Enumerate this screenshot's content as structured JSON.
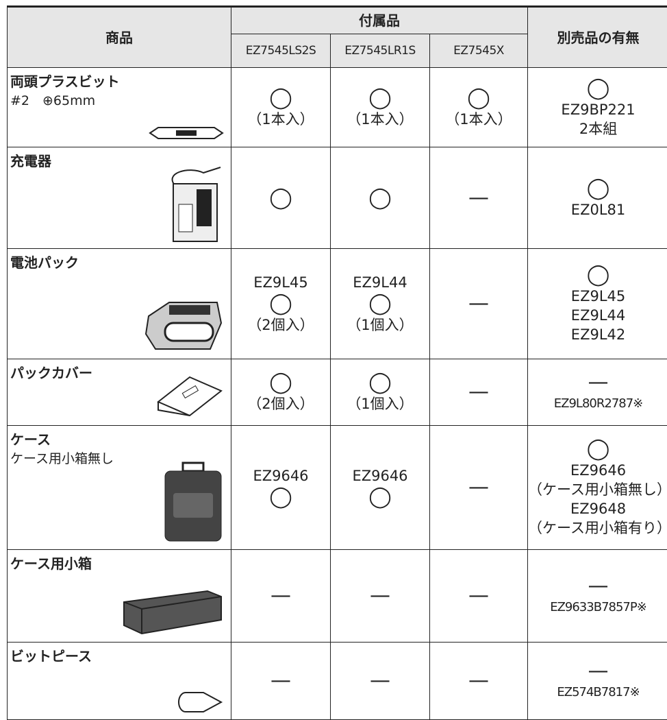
{
  "header": {
    "product": "商品",
    "accessories": "付属品",
    "models": [
      "EZ7545LS2S",
      "EZ7545LR1S",
      "EZ7545X"
    ],
    "separate": "別売品の有無"
  },
  "rows": [
    {
      "name": "両頭プラスビット",
      "sub": "#2　⊕65mm",
      "cells": [
        [
          "◯",
          "（1本入）"
        ],
        [
          "◯",
          "（1本入）"
        ],
        [
          "◯",
          "（1本入）"
        ]
      ],
      "separate": [
        "◯",
        "EZ9BP221",
        "2本組"
      ]
    },
    {
      "name": "充電器",
      "cells": [
        [
          "◯"
        ],
        [
          "◯"
        ],
        [
          "—"
        ]
      ],
      "separate": [
        "◯",
        "EZ0L81"
      ]
    },
    {
      "name": "電池パック",
      "cells": [
        [
          "EZ9L45",
          "◯",
          "（2個入）"
        ],
        [
          "EZ9L44",
          "◯",
          "（1個入）"
        ],
        [
          "—"
        ]
      ],
      "separate": [
        "◯",
        "EZ9L45",
        "EZ9L44",
        "EZ9L42"
      ]
    },
    {
      "name": "パックカバー",
      "cells": [
        [
          "◯",
          "（2個入）"
        ],
        [
          "◯",
          "（1個入）"
        ],
        [
          "—"
        ]
      ],
      "separate": [
        "—",
        "EZ9L80R2787※"
      ]
    },
    {
      "name": "ケース",
      "sub": "ケース用小箱無し",
      "cells": [
        [
          "EZ9646",
          "◯"
        ],
        [
          "EZ9646",
          "◯"
        ],
        [
          "—"
        ]
      ],
      "separate": [
        "◯",
        "EZ9646",
        "（ケース用小箱無し）",
        "EZ9648",
        "（ケース用小箱有り）"
      ]
    },
    {
      "name": "ケース用小箱",
      "cells": [
        [
          "—"
        ],
        [
          "—"
        ],
        [
          "—"
        ]
      ],
      "separate": [
        "—",
        "EZ9633B7857P※"
      ]
    },
    {
      "name": "ビットピース",
      "cells": [
        [
          "—"
        ],
        [
          "—"
        ],
        [
          "—"
        ]
      ],
      "separate": [
        "—",
        "EZ574B7817※"
      ]
    }
  ]
}
